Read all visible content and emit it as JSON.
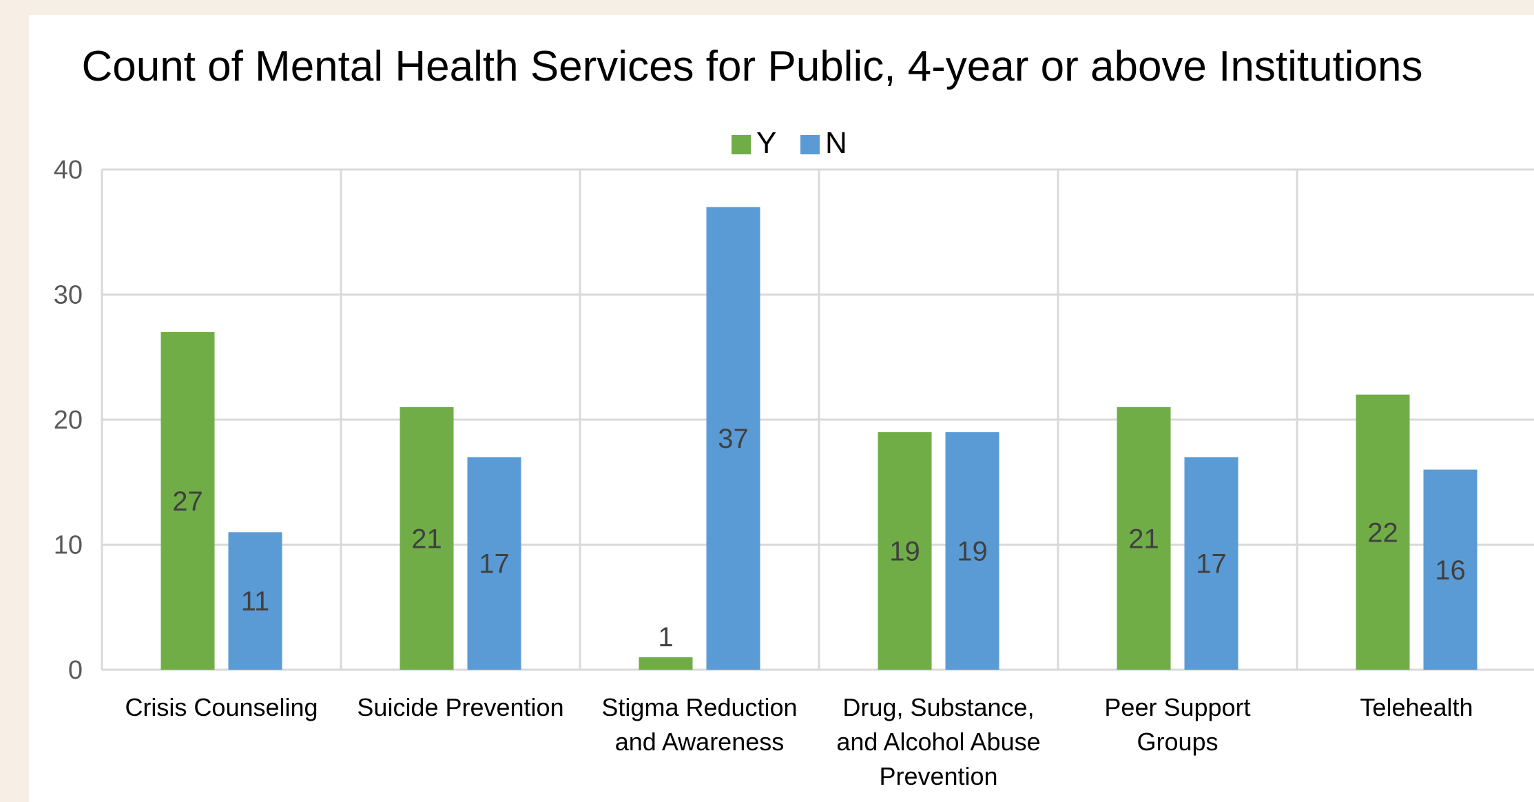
{
  "chart_data": {
    "type": "bar",
    "title": "Count of Mental Health Services for Public, 4-year or above Institutions",
    "categories": [
      [
        "Crisis Counseling"
      ],
      [
        "Suicide Prevention"
      ],
      [
        "Stigma Reduction",
        "and Awareness"
      ],
      [
        "Drug, Substance,",
        "and Alcohol Abuse",
        "Prevention"
      ],
      [
        "Peer Support",
        "Groups"
      ],
      [
        "Telehealth"
      ]
    ],
    "series": [
      {
        "name": "Y",
        "color": "#70ad47",
        "values": [
          27,
          21,
          1,
          19,
          21,
          22
        ]
      },
      {
        "name": "N",
        "color": "#5b9bd5",
        "values": [
          11,
          17,
          37,
          19,
          17,
          16
        ]
      }
    ],
    "ylim": [
      0,
      40
    ],
    "yticks": [
      0,
      10,
      20,
      30,
      40
    ],
    "grid": true,
    "legend_position": "top-center",
    "xlabel": "",
    "ylabel": ""
  }
}
